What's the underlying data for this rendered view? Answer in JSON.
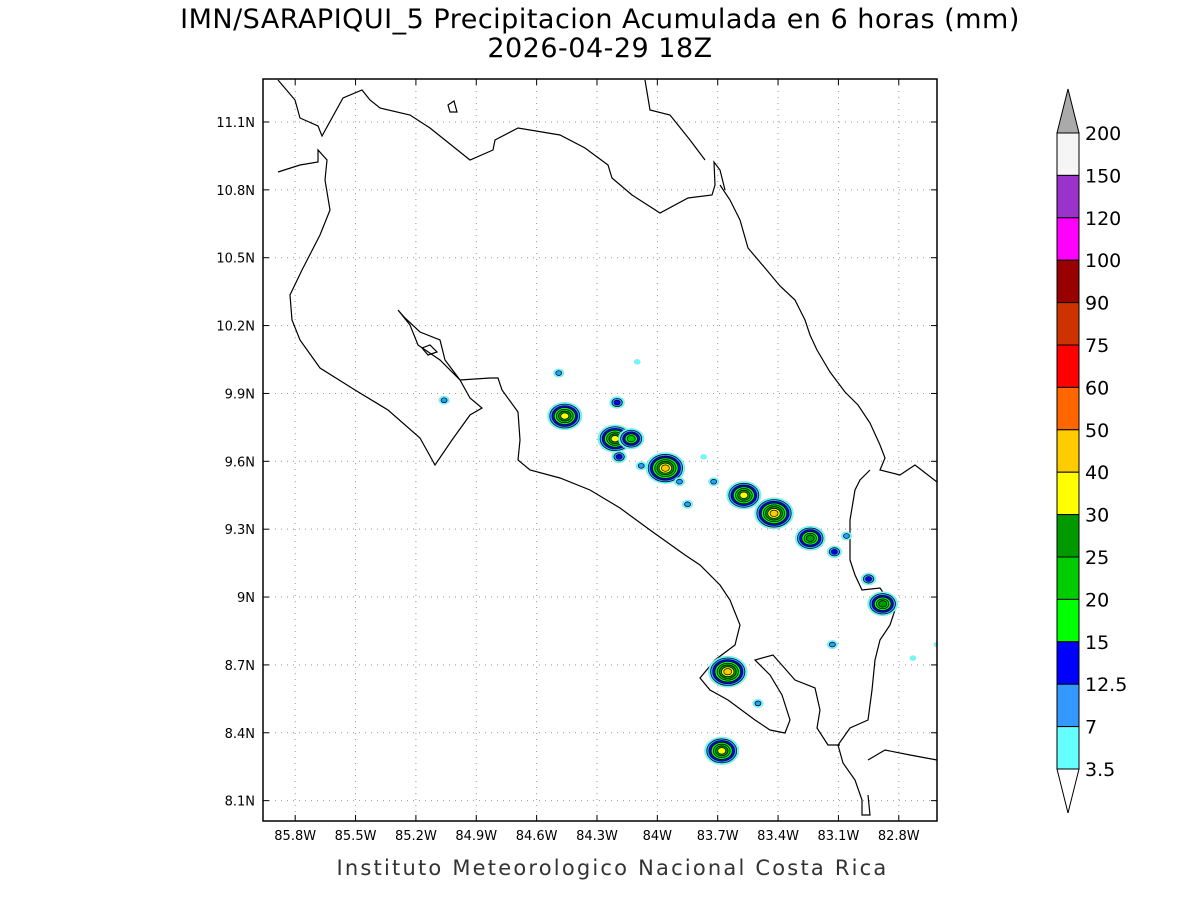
{
  "title": {
    "line1": "IMN/SARAPIQUI_5 Precipitacion Acumulada en 6 horas (mm)",
    "line2": "2026-04-29 18Z"
  },
  "footer": "Instituto Meteorologico Nacional Costa Rica",
  "axes": {
    "lon_ticks": [
      "85.8W",
      "85.5W",
      "85.2W",
      "84.9W",
      "84.6W",
      "84.3W",
      "84W",
      "83.7W",
      "83.4W",
      "83.1W",
      "82.8W"
    ],
    "lat_ticks": [
      "11.1N",
      "10.8N",
      "10.5N",
      "10.2N",
      "9.9N",
      "9.6N",
      "9.3N",
      "9N",
      "8.7N",
      "8.4N",
      "8.1N"
    ]
  },
  "colorbar": {
    "levels": [
      "3.5",
      "7",
      "12.5",
      "15",
      "20",
      "25",
      "30",
      "40",
      "50",
      "60",
      "75",
      "90",
      "100",
      "120",
      "150",
      "200"
    ],
    "colors": [
      "#66ffff",
      "#3399ff",
      "#0000ff",
      "#00ff00",
      "#00cc00",
      "#009900",
      "#ffff00",
      "#ffcc00",
      "#ff6600",
      "#ff0000",
      "#cc3300",
      "#990000",
      "#ff00ff",
      "#9933cc",
      "#f5f5f5",
      "#aaaaaa"
    ]
  },
  "rain_cells": [
    {
      "lon": -85.06,
      "lat": 9.87,
      "max": "7"
    },
    {
      "lon": -84.49,
      "lat": 9.99,
      "max": "7"
    },
    {
      "lon": -84.46,
      "lat": 9.8,
      "max": "30"
    },
    {
      "lon": -84.2,
      "lat": 9.86,
      "max": "12.5"
    },
    {
      "lon": -84.1,
      "lat": 10.04,
      "max": "3.5"
    },
    {
      "lon": -84.21,
      "lat": 9.7,
      "max": "30"
    },
    {
      "lon": -84.13,
      "lat": 9.7,
      "max": "20"
    },
    {
      "lon": -84.19,
      "lat": 9.62,
      "max": "12.5"
    },
    {
      "lon": -84.08,
      "lat": 9.58,
      "max": "7"
    },
    {
      "lon": -83.96,
      "lat": 9.57,
      "max": "40"
    },
    {
      "lon": -83.89,
      "lat": 9.51,
      "max": "7"
    },
    {
      "lon": -83.85,
      "lat": 9.41,
      "max": "7"
    },
    {
      "lon": -83.77,
      "lat": 9.62,
      "max": "3.5"
    },
    {
      "lon": -83.72,
      "lat": 9.51,
      "max": "7"
    },
    {
      "lon": -83.57,
      "lat": 9.45,
      "max": "30"
    },
    {
      "lon": -83.42,
      "lat": 9.37,
      "max": "40"
    },
    {
      "lon": -83.24,
      "lat": 9.26,
      "max": "25"
    },
    {
      "lon": -83.12,
      "lat": 9.2,
      "max": "12.5"
    },
    {
      "lon": -83.06,
      "lat": 9.27,
      "max": "7"
    },
    {
      "lon": -82.95,
      "lat": 9.08,
      "max": "12.5"
    },
    {
      "lon": -82.88,
      "lat": 8.97,
      "max": "25"
    },
    {
      "lon": -83.65,
      "lat": 8.67,
      "max": "40"
    },
    {
      "lon": -83.5,
      "lat": 8.53,
      "max": "7"
    },
    {
      "lon": -83.68,
      "lat": 8.32,
      "max": "30"
    },
    {
      "lon": -83.13,
      "lat": 8.79,
      "max": "7"
    },
    {
      "lon": -82.73,
      "lat": 8.73,
      "max": "3.5"
    },
    {
      "lon": -82.61,
      "lat": 8.79,
      "max": "3.5"
    }
  ]
}
